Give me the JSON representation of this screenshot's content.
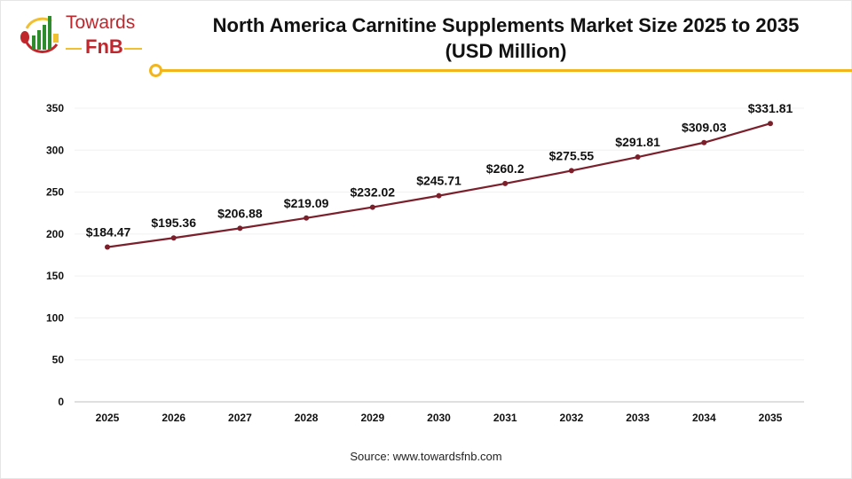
{
  "logo": {
    "line1": "Towards",
    "line2": "FnB"
  },
  "title_line1": "North America Carnitine Supplements Market Size 2025 to 2035",
  "title_line2": "(USD Million)",
  "source": "Source: www.towardsfnb.com",
  "colors": {
    "line": "#7b1f2b",
    "accent": "#f2b51c",
    "brand": "#c0272d"
  },
  "chart_data": {
    "type": "line",
    "title": "North America Carnitine Supplements Market Size 2025 to 2035 (USD Million)",
    "categories": [
      "2025",
      "2026",
      "2027",
      "2028",
      "2029",
      "2030",
      "2031",
      "2032",
      "2033",
      "2034",
      "2035"
    ],
    "values": [
      184.47,
      195.36,
      206.88,
      219.09,
      232.02,
      245.71,
      260.2,
      275.55,
      291.81,
      309.03,
      331.81
    ],
    "data_labels": [
      "$184.47",
      "$195.36",
      "$206.88",
      "$219.09",
      "$232.02",
      "$245.71",
      "$260.2",
      "$275.55",
      "$291.81",
      "$309.03",
      "$331.81"
    ],
    "yticks": [
      0,
      50,
      100,
      150,
      200,
      250,
      300,
      350
    ],
    "ylim": [
      0,
      350
    ],
    "grid": true,
    "legend": "none"
  }
}
